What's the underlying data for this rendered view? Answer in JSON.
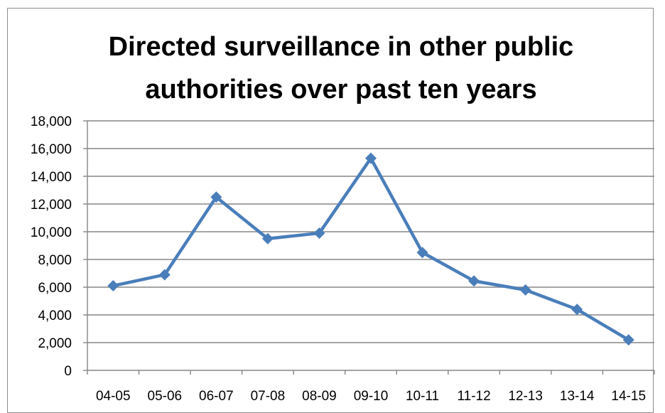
{
  "chart_data": {
    "type": "line",
    "title_lines": [
      "Directed surveillance in other public",
      "authorities over past ten years"
    ],
    "xlabel": "",
    "ylabel": "",
    "categories": [
      "04-05",
      "05-06",
      "06-07",
      "07-08",
      "08-09",
      "09-10",
      "10-11",
      "11-12",
      "12-13",
      "13-14",
      "14-15"
    ],
    "series": [
      {
        "values": [
          6100,
          6900,
          12500,
          9500,
          9900,
          15300,
          8500,
          6450,
          5800,
          4400,
          2200
        ]
      }
    ],
    "ylim": [
      0,
      18000
    ],
    "yticks": [
      0,
      2000,
      4000,
      6000,
      8000,
      10000,
      12000,
      14000,
      16000,
      18000
    ],
    "ytick_labels": [
      "0",
      "2,000",
      "4,000",
      "6,000",
      "8,000",
      "10,000",
      "12,000",
      "14,000",
      "16,000",
      "18,000"
    ],
    "grid": true,
    "legend": "none",
    "marker": "diamond",
    "colors": {
      "series": "#4a7ebb",
      "grid": "#868686",
      "text": "#000000"
    }
  }
}
